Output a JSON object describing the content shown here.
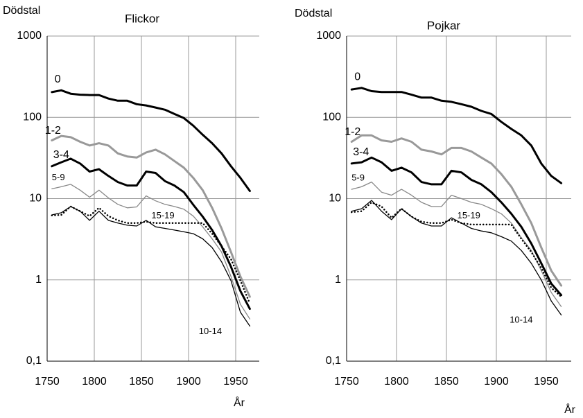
{
  "chart_data": [
    {
      "type": "line",
      "title": "Flickor",
      "y_label": "Dödstal",
      "x_label": "År",
      "log_y": true,
      "grid": true,
      "xlim": [
        1750,
        1975
      ],
      "ylim": [
        0.1,
        1000
      ],
      "xticks": [
        1750,
        1800,
        1850,
        1900,
        1950
      ],
      "yticks": [
        {
          "value": 0.1,
          "label": "0,1"
        },
        1,
        10,
        100,
        1000
      ],
      "x": [
        1755,
        1765,
        1775,
        1785,
        1795,
        1805,
        1815,
        1825,
        1835,
        1845,
        1855,
        1865,
        1875,
        1885,
        1895,
        1905,
        1915,
        1925,
        1935,
        1945,
        1955,
        1965
      ],
      "series": [
        {
          "name": "0",
          "color": "#000000",
          "line_width": 3,
          "line_style": "solid",
          "values": [
            204,
            215,
            195,
            190,
            188,
            188,
            170,
            160,
            160,
            145,
            140,
            132,
            124,
            110,
            98,
            79,
            61,
            48,
            36,
            25,
            18,
            12.4
          ]
        },
        {
          "name": "1-2",
          "color": "#999999",
          "line_width": 3,
          "line_style": "solid",
          "values": [
            52,
            59,
            57,
            50,
            45,
            48,
            45,
            36,
            33,
            32,
            37,
            40,
            35,
            29,
            24,
            18,
            12.7,
            7.7,
            4.3,
            2.2,
            1.1,
            0.62
          ]
        },
        {
          "name": "3-4",
          "color": "#000000",
          "line_width": 3,
          "line_style": "solid",
          "values": [
            25,
            28,
            31,
            27,
            21.5,
            23,
            19,
            16,
            14.5,
            14.5,
            21.5,
            20.7,
            16.4,
            14.5,
            12,
            8.4,
            6,
            4.1,
            2.6,
            1.45,
            0.73,
            0.44
          ]
        },
        {
          "name": "5-9",
          "color": "#888888",
          "line_width": 1.3,
          "line_style": "solid",
          "values": [
            13.2,
            14,
            15,
            12.7,
            10.4,
            12.7,
            10.2,
            8.5,
            7.7,
            7.9,
            10.8,
            9.4,
            8.5,
            8,
            7.4,
            6.1,
            4.5,
            3.2,
            2.2,
            1.1,
            0.5,
            0.33
          ]
        },
        {
          "name": "10-14",
          "color": "#000000",
          "line_width": 1.3,
          "line_style": "solid",
          "values": [
            6.3,
            6.7,
            8,
            7,
            5.4,
            7,
            5.4,
            5,
            4.7,
            4.6,
            5.4,
            4.5,
            4.3,
            4.1,
            3.9,
            3.7,
            3.2,
            2.5,
            1.67,
            0.98,
            0.4,
            0.27
          ]
        },
        {
          "name": "15-19",
          "color": "#000000",
          "line_width": 2.5,
          "line_style": "dotted",
          "values": [
            6.2,
            6.3,
            8,
            7,
            6.1,
            7.7,
            6.1,
            5.4,
            5,
            5,
            5.2,
            5,
            5,
            5,
            5,
            5,
            5,
            3.7,
            2.6,
            1.8,
            0.98,
            0.51
          ]
        }
      ]
    },
    {
      "type": "line",
      "title": "Pojkar",
      "y_label": "Dödstal",
      "x_label": "År",
      "log_y": true,
      "grid": true,
      "xlim": [
        1750,
        1975
      ],
      "ylim": [
        0.1,
        1000
      ],
      "xticks": [
        1750,
        1800,
        1850,
        1900,
        1950
      ],
      "yticks": [
        {
          "value": 0.1,
          "label": "0,1"
        },
        1,
        10,
        100,
        1000
      ],
      "x": [
        1755,
        1765,
        1775,
        1785,
        1795,
        1805,
        1815,
        1825,
        1835,
        1845,
        1855,
        1865,
        1875,
        1885,
        1895,
        1905,
        1915,
        1925,
        1935,
        1945,
        1955,
        1965
      ],
      "series": [
        {
          "name": "0",
          "color": "#000000",
          "line_width": 3,
          "line_style": "solid",
          "values": [
            220,
            230,
            210,
            205,
            205,
            205,
            190,
            175,
            175,
            160,
            155,
            145,
            135,
            120,
            110,
            88,
            72,
            60,
            45,
            27,
            19,
            15.5
          ]
        },
        {
          "name": "1-2",
          "color": "#999999",
          "line_width": 3,
          "line_style": "solid",
          "values": [
            50,
            60,
            60,
            52,
            50,
            55,
            50,
            40,
            38,
            35,
            42,
            42,
            38,
            32,
            27,
            20,
            14,
            8.5,
            5,
            2.5,
            1.3,
            0.85
          ]
        },
        {
          "name": "3-4",
          "color": "#000000",
          "line_width": 3,
          "line_style": "solid",
          "values": [
            27,
            28,
            32,
            28,
            22,
            24,
            21,
            16,
            15,
            15,
            22,
            21,
            17,
            15,
            12,
            9,
            6.5,
            4.5,
            2.8,
            1.6,
            0.9,
            0.65
          ]
        },
        {
          "name": "5-9",
          "color": "#888888",
          "line_width": 1.3,
          "line_style": "solid",
          "values": [
            13,
            14,
            16,
            12,
            11,
            13,
            11,
            9,
            8,
            8,
            11,
            10,
            9,
            8.5,
            7.5,
            6.5,
            5,
            3.3,
            2.3,
            1.3,
            0.7,
            0.47
          ]
        },
        {
          "name": "10-14",
          "color": "#000000",
          "line_width": 1.3,
          "line_style": "solid",
          "values": [
            7,
            7.5,
            9.5,
            7,
            5.5,
            7.5,
            6,
            5,
            4.6,
            4.6,
            5.8,
            5,
            4.3,
            4,
            3.8,
            3.4,
            3,
            2.3,
            1.6,
            1,
            0.55,
            0.37
          ]
        },
        {
          "name": "15-19",
          "color": "#000000",
          "line_width": 2.5,
          "line_style": "dotted",
          "values": [
            6.8,
            7,
            9,
            8,
            5.8,
            7.5,
            6,
            5.2,
            5,
            5,
            5.5,
            5,
            4.8,
            4.8,
            4.8,
            4.8,
            4.8,
            3.2,
            2.2,
            1.4,
            0.8,
            0.62
          ]
        }
      ]
    }
  ]
}
